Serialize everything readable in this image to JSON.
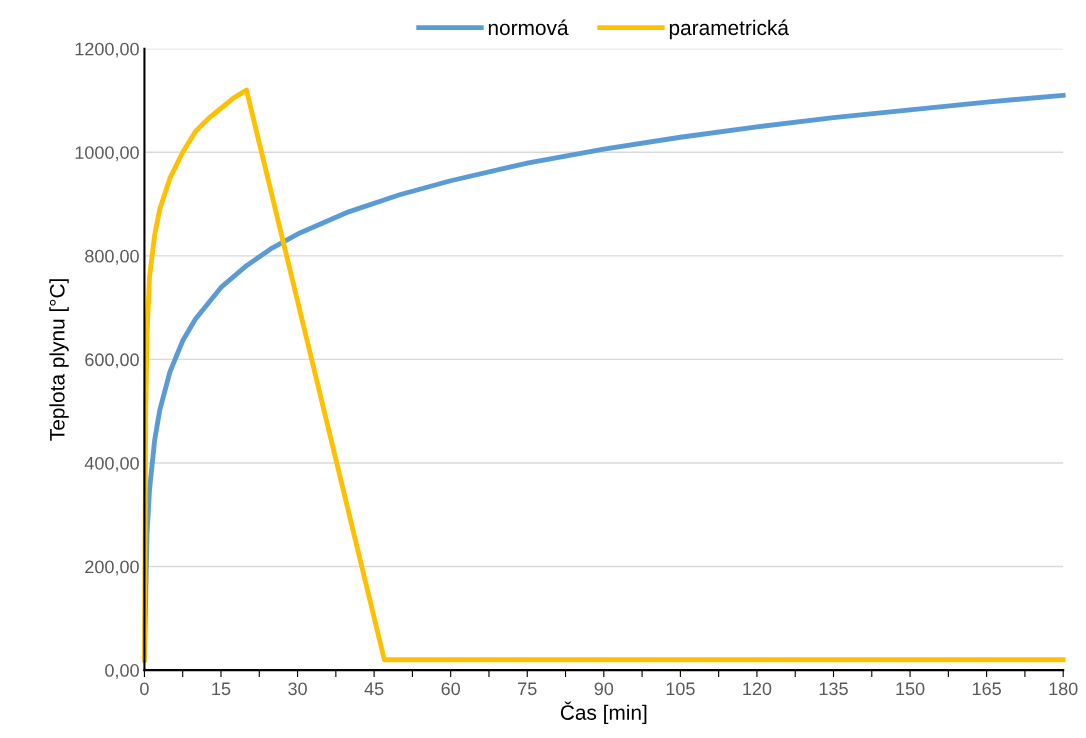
{
  "chart_data": {
    "type": "line",
    "xlabel": "Čas [min]",
    "ylabel": "Teplota plynu [°C]",
    "xlim": [
      0,
      180
    ],
    "ylim": [
      0,
      1200
    ],
    "xticks": [
      0,
      {
        "value": 7.5,
        "label": null
      },
      15,
      {
        "value": 22.5,
        "label": null
      },
      30,
      {
        "value": 37.5,
        "label": null
      },
      45,
      {
        "value": 52.5,
        "label": null
      },
      60,
      {
        "value": 67.5,
        "label": null
      },
      75,
      {
        "value": 82.5,
        "label": null
      },
      90,
      {
        "value": 97.5,
        "label": null
      },
      105,
      {
        "value": 112.5,
        "label": null
      },
      120,
      {
        "value": 127.5,
        "label": null
      },
      135,
      {
        "value": 142.5,
        "label": null
      },
      150,
      {
        "value": 157.5,
        "label": null
      },
      165,
      {
        "value": 172.5,
        "label": null
      },
      180
    ],
    "yticks": [
      {
        "value": 0,
        "label": "0,00"
      },
      {
        "value": 200,
        "label": "200,00"
      },
      {
        "value": 400,
        "label": "400,00"
      },
      {
        "value": 600,
        "label": "600,00"
      },
      {
        "value": 800,
        "label": "800,00"
      },
      {
        "value": 1000,
        "label": "1000,00"
      },
      {
        "value": 1200,
        "label": "1200,00"
      }
    ],
    "grid": "y",
    "legend": "top",
    "marker": "none",
    "line_style": "solid",
    "series": [
      {
        "name": "normová",
        "color": "#5b9bd5",
        "x": [
          0,
          0.5,
          1,
          2,
          3,
          5,
          7.5,
          10,
          15,
          20,
          25,
          30,
          40,
          50,
          60,
          75,
          90,
          105,
          120,
          135,
          150,
          165,
          180
        ],
        "values": [
          20,
          261,
          349,
          444,
          502,
          576,
          636,
          678,
          739,
          781,
          815,
          842,
          885,
          918,
          945,
          979,
          1006,
          1029,
          1049,
          1067,
          1082,
          1097,
          1110
        ]
      },
      {
        "name": "parametrická",
        "color": "#ffc000",
        "x": [
          0,
          0.25,
          0.5,
          1,
          2,
          3,
          5,
          7.5,
          10,
          12.5,
          15,
          17.5,
          20,
          47,
          180
        ],
        "values": [
          20,
          500,
          650,
          760,
          840,
          890,
          950,
          1000,
          1040,
          1065,
          1085,
          1105,
          1120,
          20,
          20
        ]
      }
    ]
  }
}
